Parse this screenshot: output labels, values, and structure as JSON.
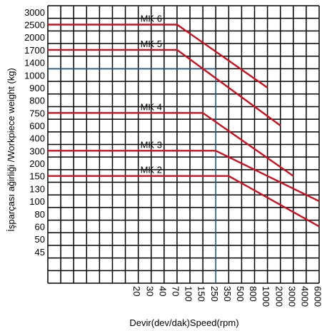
{
  "chart_data": {
    "type": "line",
    "ylabel": "İşparçası ağirliği /Workpiece weight (kg)",
    "xlabel": "Devir(dev/dak)Speed(rpm)",
    "y_ticks": [
      "3000",
      "2500",
      "2000",
      "1700",
      "1400",
      "1000",
      "900",
      "800",
      "750",
      "600",
      "400",
      "300",
      "200",
      "150",
      "130",
      "100",
      "80",
      "60",
      "50",
      "45"
    ],
    "x_ticks": [
      "20",
      "30",
      "40",
      "70",
      "100",
      "150",
      "250",
      "350",
      "500",
      "800",
      "1000",
      "2000",
      "3000",
      "4000",
      "6000"
    ],
    "series": [
      {
        "name": "MK 6",
        "points": [
          [
            "0",
            "2500"
          ],
          [
            "70",
            "2500"
          ],
          [
            "1000",
            "900"
          ]
        ]
      },
      {
        "name": "MK 5",
        "points": [
          [
            "0",
            "1700"
          ],
          [
            "70",
            "1700"
          ],
          [
            "2000",
            "600"
          ]
        ]
      },
      {
        "name": "MK 4",
        "points": [
          [
            "0",
            "750"
          ],
          [
            "150",
            "750"
          ],
          [
            "3000",
            "150"
          ]
        ]
      },
      {
        "name": "MK 3",
        "points": [
          [
            "0",
            "300"
          ],
          [
            "250",
            "300"
          ],
          [
            "6000",
            "100"
          ]
        ]
      },
      {
        "name": "MK 2",
        "points": [
          [
            "0",
            "150"
          ],
          [
            "350",
            "150"
          ],
          [
            "6000",
            "60"
          ]
        ]
      }
    ],
    "reference_lines": [
      {
        "x": "250",
        "y": "1000"
      }
    ],
    "grid": true,
    "colors": {
      "series": "#cc1020",
      "grid": "#000000",
      "reference": "#1f5a8a"
    }
  }
}
